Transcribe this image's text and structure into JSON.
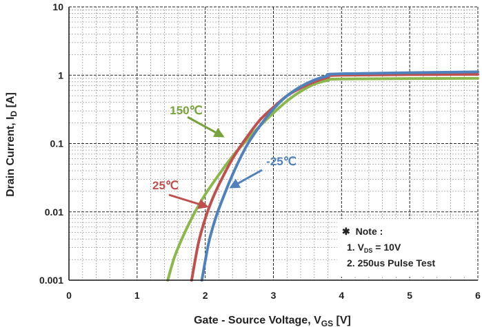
{
  "chart_data": {
    "type": "line",
    "title": "",
    "xlabel": "Gate - Source Voltage, VGS [V]",
    "xlabel_parts": [
      "Gate - Source Voltage, V",
      "GS",
      " [V]"
    ],
    "ylabel": "Drain Current, ID [A]",
    "ylabel_parts": [
      "Drain Current, I",
      "D",
      " [A]"
    ],
    "xlim": [
      0,
      6
    ],
    "ylim": [
      0.001,
      10
    ],
    "yscale": "log",
    "xticks": [
      "0",
      "1",
      "2",
      "3",
      "4",
      "5",
      "6"
    ],
    "yticks": [
      "0.001",
      "0.01",
      "0.1",
      "1",
      "10"
    ],
    "grid": true,
    "series": [
      {
        "name": "150℃",
        "color": "#8bb84a",
        "x": [
          1.45,
          1.55,
          1.7,
          1.85,
          2.0,
          2.2,
          2.4,
          2.6,
          2.8,
          3.0,
          3.2,
          3.4,
          3.6,
          3.8,
          4.0,
          6.0
        ],
        "y": [
          0.001,
          0.0022,
          0.005,
          0.01,
          0.018,
          0.035,
          0.065,
          0.11,
          0.18,
          0.28,
          0.42,
          0.58,
          0.74,
          0.84,
          0.88,
          0.9
        ]
      },
      {
        "name": "25℃",
        "color": "#c0504d",
        "x": [
          1.8,
          1.9,
          2.0,
          2.1,
          2.2,
          2.4,
          2.6,
          2.8,
          3.0,
          3.2,
          3.4,
          3.6,
          3.8,
          4.0,
          6.0
        ],
        "y": [
          0.001,
          0.0035,
          0.008,
          0.015,
          0.025,
          0.06,
          0.12,
          0.22,
          0.34,
          0.5,
          0.65,
          0.8,
          0.93,
          1.0,
          1.03
        ]
      },
      {
        "name": "-25℃",
        "color": "#4f81bd",
        "x": [
          1.95,
          2.05,
          2.15,
          2.25,
          2.4,
          2.6,
          2.8,
          3.0,
          3.2,
          3.4,
          3.6,
          3.8,
          4.0,
          6.0
        ],
        "y": [
          0.001,
          0.0035,
          0.008,
          0.015,
          0.035,
          0.09,
          0.18,
          0.32,
          0.5,
          0.68,
          0.85,
          0.98,
          1.05,
          1.12
        ]
      }
    ],
    "annotations": [
      {
        "text": "150℃",
        "color": "#77a23c",
        "x": 2.7,
        "y": 0.05
      },
      {
        "text": "25℃",
        "color": "#c0504d",
        "x": 2.3,
        "y": 0.006
      },
      {
        "text": "-25℃",
        "color": "#4f81bd",
        "x": 3.1,
        "y": 0.038
      }
    ],
    "note": {
      "title": "Note :",
      "symbol": "✱",
      "line1_parts": [
        "1. V",
        "DS",
        " = 10V"
      ],
      "line2": "2. 250us Pulse Test"
    }
  }
}
